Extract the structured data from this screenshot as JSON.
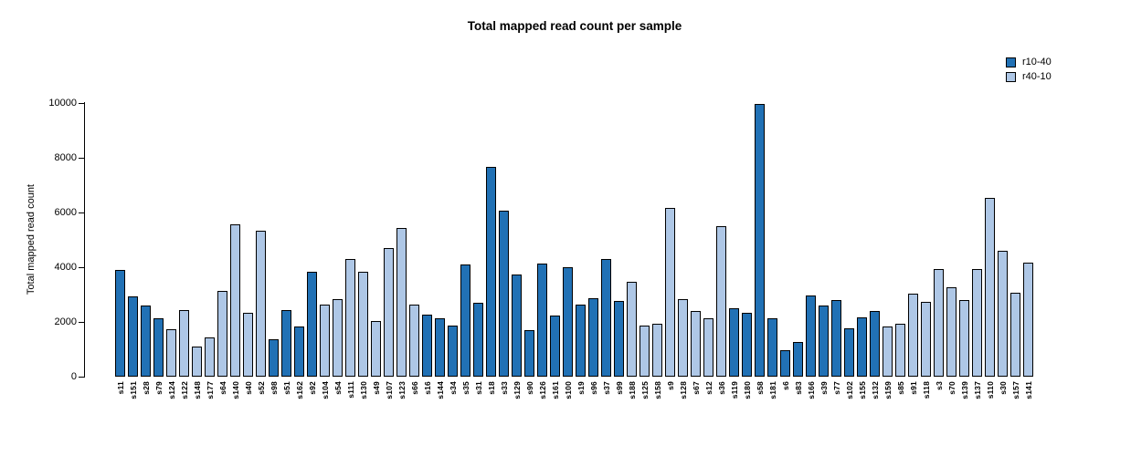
{
  "title": "Total mapped read count per sample",
  "y_axis_label": "Total mapped read count",
  "legend": [
    {
      "label": "r10-40",
      "color": "#2171b5"
    },
    {
      "label": "r40-10",
      "color": "#aec7e6"
    }
  ],
  "chart_data": {
    "type": "bar",
    "title": "Total mapped read count per sample",
    "xlabel": "",
    "ylabel": "Total mapped read count",
    "ylim": [
      0,
      10000
    ],
    "yticks": [
      0,
      2000,
      4000,
      6000,
      8000,
      10000
    ],
    "grid": false,
    "legend_position": "top-right",
    "bar_border_color": "#000000",
    "series_colors": {
      "r10-40": "#2171b5",
      "r40-10": "#aec7e6"
    },
    "categories": [
      "s11",
      "s151",
      "s28",
      "s79",
      "s124",
      "s122",
      "s148",
      "s177",
      "s64",
      "s140",
      "s40",
      "s52",
      "s98",
      "s51",
      "s162",
      "s92",
      "s104",
      "s54",
      "s111",
      "s130",
      "s49",
      "s107",
      "s123",
      "s66",
      "s16",
      "s144",
      "s34",
      "s35",
      "s31",
      "s18",
      "s33",
      "s129",
      "s90",
      "s126",
      "s161",
      "s100",
      "s19",
      "s96",
      "s37",
      "s99",
      "s188",
      "s125",
      "s158",
      "s9",
      "s128",
      "s67",
      "s12",
      "s36",
      "s119",
      "s180",
      "s58",
      "s181",
      "s6",
      "s83",
      "s166",
      "s39",
      "s77",
      "s102",
      "s155",
      "s132",
      "s159",
      "s85",
      "s91",
      "s118",
      "s3",
      "s70",
      "s139",
      "s137",
      "s110",
      "s30",
      "s157",
      "s141"
    ],
    "values": [
      3900,
      2950,
      2600,
      2150,
      1720,
      2430,
      1090,
      1430,
      3130,
      5580,
      2340,
      5340,
      1360,
      2440,
      1820,
      3850,
      2650,
      2830,
      4300,
      3830,
      2030,
      4690,
      5420,
      2650,
      2280,
      2120,
      1870,
      4110,
      2690,
      7660,
      6060,
      3740,
      1700,
      4130,
      2240,
      4000,
      2650,
      2860,
      4300,
      2760,
      3460,
      1860,
      1920,
      6170,
      2840,
      2400,
      2120,
      5500,
      2490,
      2340,
      9980,
      2150,
      980,
      1260,
      2970,
      2610,
      2790,
      1780,
      2180,
      2410,
      1850,
      1950,
      3040,
      2720,
      3950,
      3270,
      2790,
      3930,
      6520,
      4600,
      3060,
      4180
    ],
    "series": [
      "r10-40",
      "r10-40",
      "r10-40",
      "r10-40",
      "r40-10",
      "r40-10",
      "r40-10",
      "r40-10",
      "r40-10",
      "r40-10",
      "r40-10",
      "r40-10",
      "r10-40",
      "r10-40",
      "r10-40",
      "r10-40",
      "r40-10",
      "r40-10",
      "r40-10",
      "r40-10",
      "r40-10",
      "r40-10",
      "r40-10",
      "r40-10",
      "r10-40",
      "r10-40",
      "r10-40",
      "r10-40",
      "r10-40",
      "r10-40",
      "r10-40",
      "r10-40",
      "r10-40",
      "r10-40",
      "r10-40",
      "r10-40",
      "r10-40",
      "r10-40",
      "r10-40",
      "r10-40",
      "r40-10",
      "r40-10",
      "r40-10",
      "r40-10",
      "r40-10",
      "r40-10",
      "r40-10",
      "r40-10",
      "r10-40",
      "r10-40",
      "r10-40",
      "r10-40",
      "r10-40",
      "r10-40",
      "r10-40",
      "r10-40",
      "r10-40",
      "r10-40",
      "r10-40",
      "r10-40",
      "r40-10",
      "r40-10",
      "r40-10",
      "r40-10",
      "r40-10",
      "r40-10",
      "r40-10",
      "r40-10",
      "r40-10",
      "r40-10",
      "r40-10",
      "r40-10"
    ]
  }
}
